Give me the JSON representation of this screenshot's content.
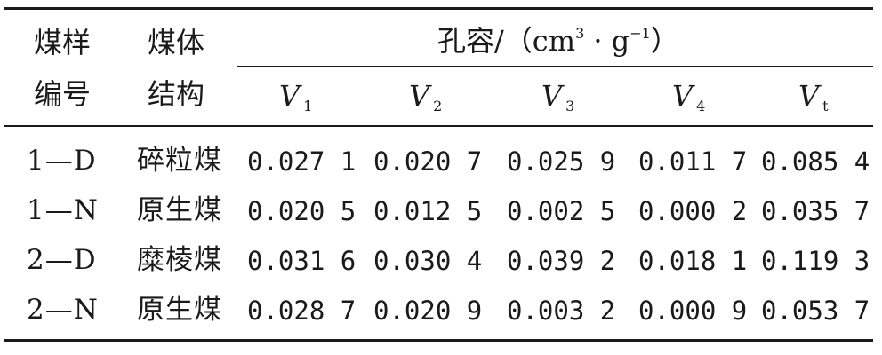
{
  "table": {
    "header": {
      "sample_line1": "煤样",
      "sample_line2": "编号",
      "structure_line1": "煤体",
      "structure_line2": "结构",
      "pore_volume_prefix": "孔容/（cm",
      "pore_volume_sup1": "3",
      "pore_volume_mid": " · g",
      "pore_volume_sup2": "−1",
      "pore_volume_suffix": "）",
      "columns": [
        {
          "symbol": "V",
          "sub": "1"
        },
        {
          "symbol": "V",
          "sub": "2"
        },
        {
          "symbol": "V",
          "sub": "3"
        },
        {
          "symbol": "V",
          "sub": "4"
        },
        {
          "symbol": "V",
          "sub": "t"
        }
      ]
    },
    "rows": [
      {
        "id": "1—D",
        "structure": "碎粒煤",
        "v1": "0.027 1",
        "v2": "0.020 7",
        "v3": "0.025 9",
        "v4": "0.011 7",
        "vt": "0.085 4"
      },
      {
        "id": "1—N",
        "structure": "原生煤",
        "v1": "0.020 5",
        "v2": "0.012 5",
        "v3": "0.002 5",
        "v4": "0.000 2",
        "vt": "0.035 7"
      },
      {
        "id": "2—D",
        "structure": "糜棱煤",
        "v1": "0.031 6",
        "v2": "0.030 4",
        "v3": "0.039 2",
        "v4": "0.018 1",
        "vt": "0.119 3"
      },
      {
        "id": "2—N",
        "structure": "原生煤",
        "v1": "0.028 7",
        "v2": "0.020 9",
        "v3": "0.003 2",
        "v4": "0.000 9",
        "vt": "0.053 7"
      }
    ]
  }
}
